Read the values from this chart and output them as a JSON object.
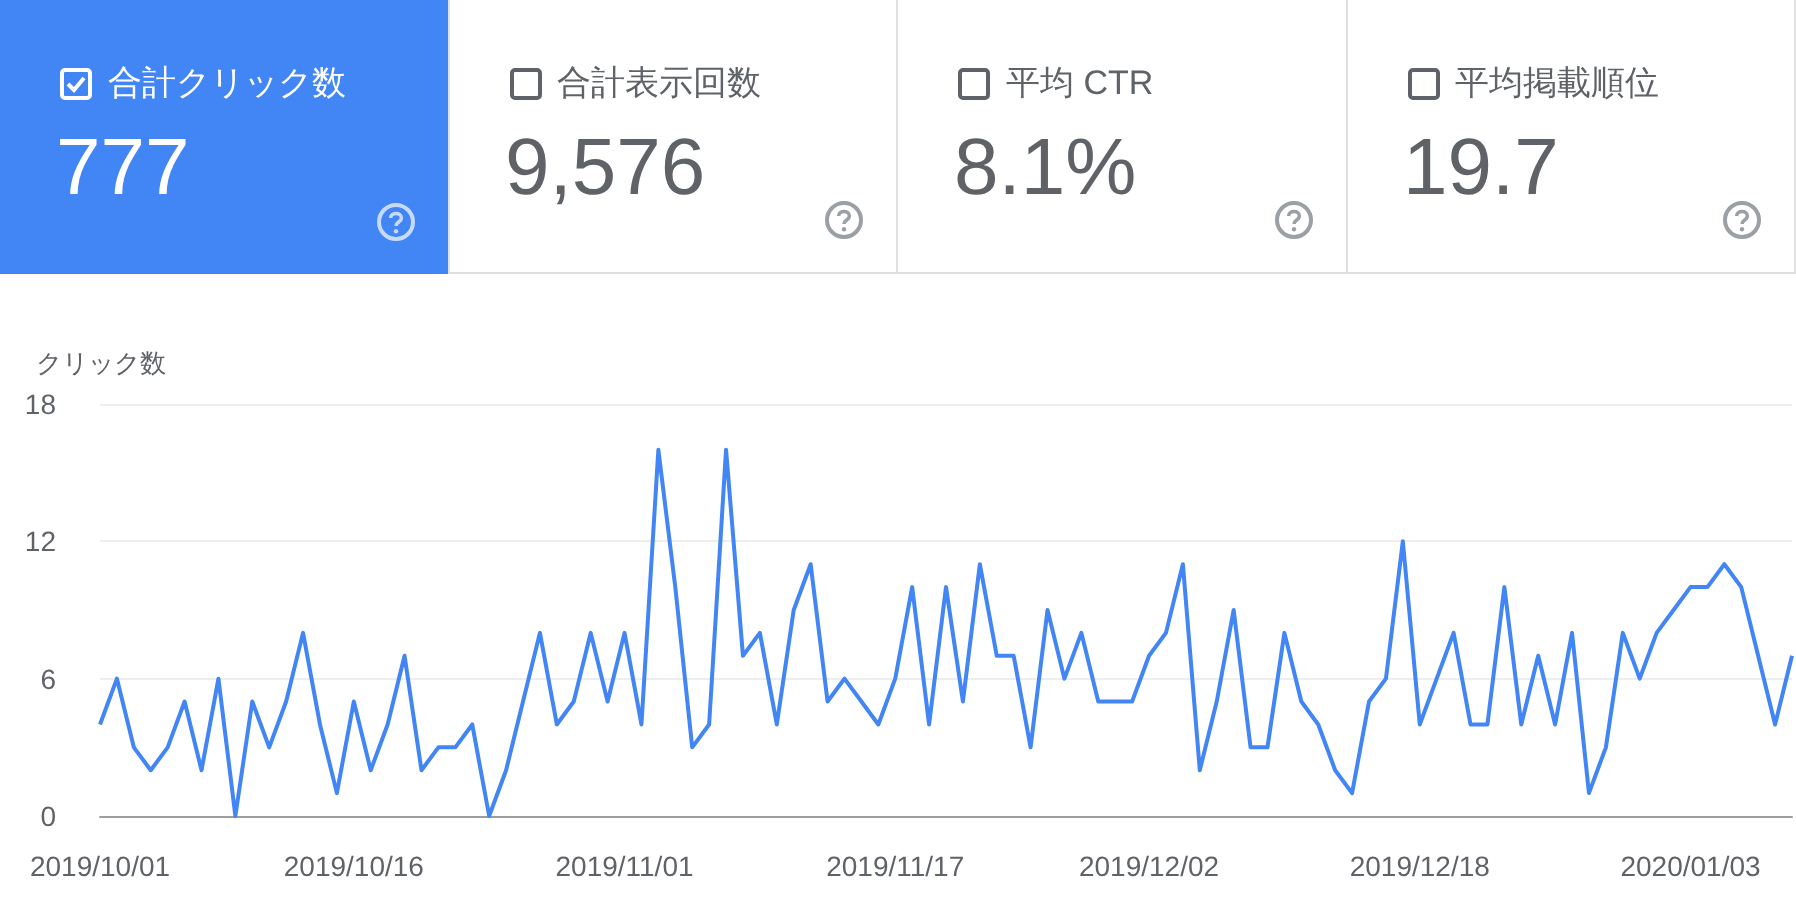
{
  "chart_data": [
    {
      "type": "other",
      "title": "合計クリック数",
      "annotations": [
        "777"
      ],
      "color": "#4285f4"
    },
    {
      "type": "other",
      "title": "合計表示回数",
      "annotations": [
        "9,576"
      ]
    },
    {
      "type": "other",
      "title": "平均 CTR",
      "annotations": [
        "8.1%"
      ]
    },
    {
      "type": "other",
      "title": "平均掲載順位",
      "annotations": [
        "19.7"
      ]
    },
    {
      "type": "line",
      "ylabel": "クリック数",
      "color": "#4285f4",
      "marker": "none",
      "grid": "y",
      "x": [
        "2019-10-01",
        "2019-10-02",
        "2019-10-03",
        "2019-10-04",
        "2019-10-05",
        "2019-10-06",
        "2019-10-07",
        "2019-10-08",
        "2019-10-09",
        "2019-10-10",
        "2019-10-11",
        "2019-10-12",
        "2019-10-13",
        "2019-10-14",
        "2019-10-15",
        "2019-10-16",
        "2019-10-17",
        "2019-10-18",
        "2019-10-19",
        "2019-10-20",
        "2019-10-21",
        "2019-10-22",
        "2019-10-23",
        "2019-10-24",
        "2019-10-25",
        "2019-10-26",
        "2019-10-27",
        "2019-10-28",
        "2019-10-29",
        "2019-10-30",
        "2019-10-31",
        "2019-11-01",
        "2019-11-02",
        "2019-11-03",
        "2019-11-04",
        "2019-11-05",
        "2019-11-06",
        "2019-11-07",
        "2019-11-08",
        "2019-11-09",
        "2019-11-10",
        "2019-11-11",
        "2019-11-12",
        "2019-11-13",
        "2019-11-14",
        "2019-11-15",
        "2019-11-16",
        "2019-11-17",
        "2019-11-18",
        "2019-11-19",
        "2019-11-20",
        "2019-11-21",
        "2019-11-22",
        "2019-11-23",
        "2019-11-24",
        "2019-11-25",
        "2019-11-26",
        "2019-11-27",
        "2019-11-28",
        "2019-11-29",
        "2019-11-30",
        "2019-12-01",
        "2019-12-02",
        "2019-12-03",
        "2019-12-04",
        "2019-12-05",
        "2019-12-06",
        "2019-12-07",
        "2019-12-08",
        "2019-12-09",
        "2019-12-10",
        "2019-12-11",
        "2019-12-12",
        "2019-12-13",
        "2019-12-14",
        "2019-12-15",
        "2019-12-16",
        "2019-12-17",
        "2019-12-18",
        "2019-12-19",
        "2019-12-20",
        "2019-12-21",
        "2019-12-22",
        "2019-12-23",
        "2019-12-24",
        "2019-12-25",
        "2019-12-26",
        "2019-12-27",
        "2019-12-28",
        "2019-12-29",
        "2019-12-30",
        "2019-12-31",
        "2020-01-01",
        "2020-01-02",
        "2020-01-03",
        "2020-01-04",
        "2020-01-05",
        "2020-01-06",
        "2020-01-07",
        "2020-01-08",
        "2020-01-09"
      ],
      "values": [
        4,
        6,
        3,
        2,
        3,
        5,
        2,
        6,
        0,
        5,
        3,
        5,
        8,
        4,
        1,
        5,
        2,
        4,
        7,
        2,
        3,
        3,
        4,
        0,
        2,
        5,
        8,
        4,
        5,
        8,
        5,
        8,
        4,
        16,
        10,
        3,
        4,
        16,
        7,
        8,
        4,
        9,
        11,
        5,
        6,
        5,
        4,
        6,
        10,
        4,
        10,
        5,
        11,
        7,
        7,
        3,
        9,
        6,
        8,
        5,
        5,
        5,
        7,
        8,
        11,
        2,
        5,
        9,
        3,
        3,
        8,
        5,
        4,
        2,
        1,
        5,
        6,
        12,
        4,
        6,
        8,
        4,
        4,
        10,
        4,
        7,
        4,
        8,
        1,
        3,
        8,
        6,
        8,
        9,
        10,
        10,
        11,
        10,
        7,
        4,
        7
      ],
      "ylim": [
        0,
        18
      ],
      "yticks": [
        0,
        6,
        12,
        18
      ],
      "xlim": [
        "2019-10-01",
        "2020-01-09"
      ],
      "xticks": [
        {
          "value": "2019-10-01",
          "label": "2019/10/01"
        },
        {
          "value": "2019-10-16",
          "label": "2019/10/16"
        },
        {
          "value": "2019-11-01",
          "label": "2019/11/01"
        },
        {
          "value": "2019-11-17",
          "label": "2019/11/17"
        },
        {
          "value": "2019-12-02",
          "label": "2019/12/02"
        },
        {
          "value": "2019-12-18",
          "label": "2019/12/18"
        },
        {
          "value": "2020-01-03",
          "label": "2020/01/03"
        }
      ]
    }
  ]
}
